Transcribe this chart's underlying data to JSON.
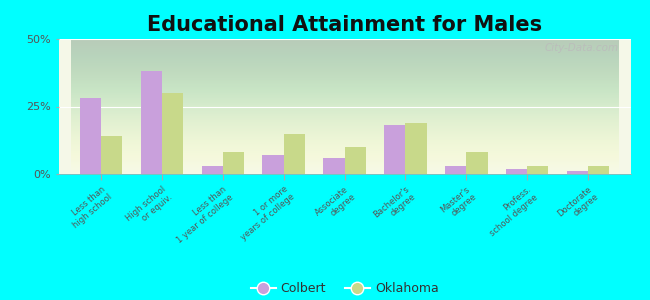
{
  "title": "Educational Attainment for Males",
  "categories": [
    "Less than\nhigh school",
    "High school\nor equiv.",
    "Less than\n1 year of college",
    "1 or more\nyears of college",
    "Associate\ndegree",
    "Bachelor's\ndegree",
    "Master's\ndegree",
    "Profess.\nschool degree",
    "Doctorate\ndegree"
  ],
  "colbert_values": [
    28,
    38,
    3,
    7,
    6,
    18,
    3,
    2,
    1
  ],
  "oklahoma_values": [
    14,
    30,
    8,
    15,
    10,
    19,
    8,
    3,
    3
  ],
  "colbert_color": "#c9a0dc",
  "oklahoma_color": "#c8d98a",
  "background_color": "#00ffff",
  "ylim": [
    0,
    50
  ],
  "yticks": [
    0,
    25,
    50
  ],
  "ytick_labels": [
    "0%",
    "25%",
    "50%"
  ],
  "bar_width": 0.35,
  "legend_labels": [
    "Colbert",
    "Oklahoma"
  ],
  "title_fontsize": 15,
  "watermark": "City-Data.com"
}
